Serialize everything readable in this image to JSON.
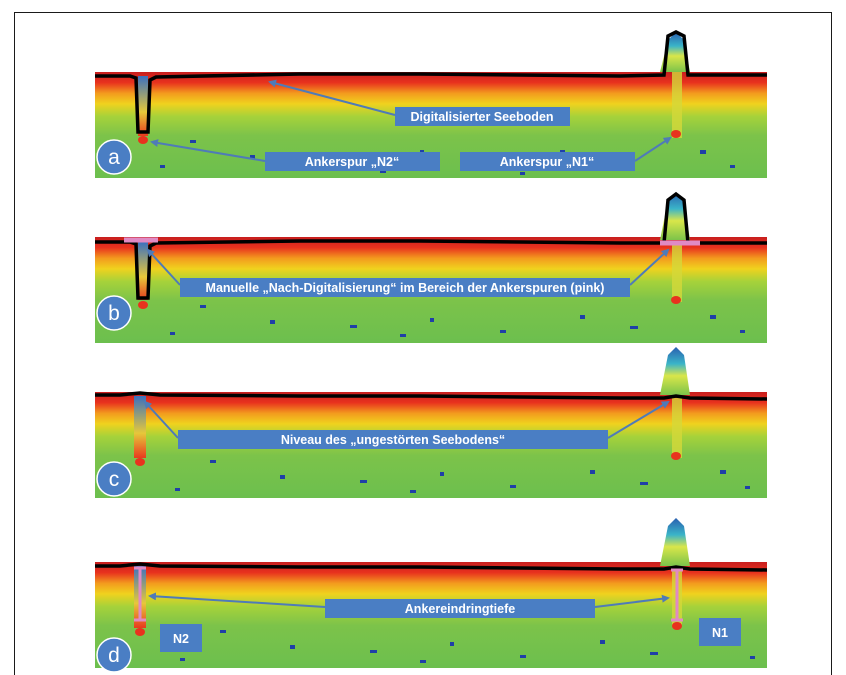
{
  "panels": [
    {
      "letter": "a",
      "labels": {
        "seabed": "Digitalisierter Seeboden",
        "track_n2": "Ankerspur „N2“",
        "track_n1": "Ankerspur „N1“"
      }
    },
    {
      "letter": "b",
      "labels": {
        "manual": "Manuelle „Nach-Digitalisierung“  im Bereich der Ankerspuren (pink)"
      }
    },
    {
      "letter": "c",
      "labels": {
        "level": "Niveau des „ungestörten Seebodens“"
      }
    },
    {
      "letter": "d",
      "labels": {
        "depth": "Ankereindringtiefe",
        "n2": "N2",
        "n1": "N1"
      }
    }
  ],
  "colors": {
    "label_box": "#4a7ec4",
    "arrow": "#4f7bb8",
    "seabed_line": "#000000",
    "manual_line": "#e08ac4",
    "echo_top": "#c81e1e",
    "echo_mid": "#f0d21e",
    "echo_body": "#7cc34a",
    "echo_speckle": "#1f3fa8"
  }
}
